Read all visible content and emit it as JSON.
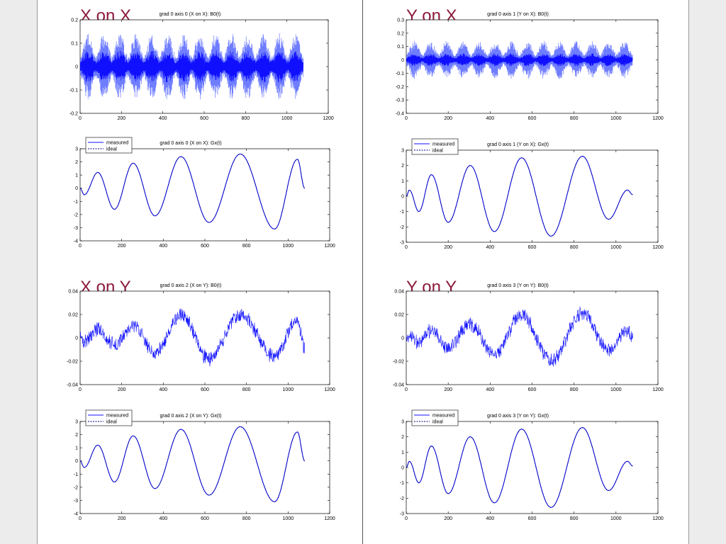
{
  "colors": {
    "measured": "#1010ff",
    "envelope": "#6f7dff",
    "ideal": "#000080",
    "label": "#8b1a3a"
  },
  "section_labels": [
    {
      "text": "X on X",
      "slot": "top-left"
    },
    {
      "text": "Y on X",
      "slot": "top-right"
    },
    {
      "text": "X on Y",
      "slot": "bottom-left"
    },
    {
      "text": "Y on Y",
      "slot": "bottom-right"
    }
  ],
  "chart_data": [
    {
      "id": "xx-b0",
      "type": "line",
      "title": "grad 0 axis 0 (X on X): B0(t)",
      "xlim": [
        0,
        1200
      ],
      "ylim": [
        -0.2,
        0.2
      ],
      "xticks": [
        0,
        200,
        400,
        600,
        800,
        1000,
        1200
      ],
      "yticks": [
        -0.2,
        -0.1,
        0,
        0.1,
        0.2
      ],
      "series": [
        {
          "kind": "noise",
          "x_end": 1080,
          "amplitude": 0.07,
          "envelope_amplitude": 0.13,
          "bursts": 14
        }
      ]
    },
    {
      "id": "xx-gx",
      "type": "line",
      "title": "grad 0 axis 0 (X on X): Gx(t)",
      "xlim": [
        0,
        1200
      ],
      "ylim": [
        -4,
        3
      ],
      "xticks": [
        0,
        200,
        400,
        600,
        800,
        1000,
        1200
      ],
      "yticks": [
        -4,
        -3,
        -2,
        -1,
        0,
        1,
        2,
        3
      ],
      "legend": [
        "measured",
        "ideal"
      ],
      "series": [
        {
          "name": "measured",
          "x": [
            0,
            20,
            85,
            165,
            255,
            360,
            485,
            620,
            770,
            935,
            1045,
            1080
          ],
          "y": [
            0,
            -0.5,
            1.2,
            -1.6,
            1.9,
            -2.1,
            2.4,
            -2.6,
            2.6,
            -3.1,
            2.2,
            0
          ]
        },
        {
          "name": "ideal",
          "x": [
            0,
            20,
            85,
            165,
            255,
            360,
            485,
            620,
            770,
            935,
            1045,
            1080
          ],
          "y": [
            0,
            -0.5,
            1.2,
            -1.6,
            1.9,
            -2.1,
            2.4,
            -2.6,
            2.6,
            -3.1,
            2.2,
            0
          ]
        }
      ]
    },
    {
      "id": "yx-b0",
      "type": "line",
      "title": "grad 0 axis 1 (Y on X): B0(t)",
      "xlim": [
        0,
        1200
      ],
      "ylim": [
        -0.4,
        0.3
      ],
      "xticks": [
        0,
        200,
        400,
        600,
        800,
        1000,
        1200
      ],
      "yticks": [
        -0.4,
        -0.3,
        -0.2,
        -0.1,
        0,
        0.1,
        0.2,
        0.3
      ],
      "series": [
        {
          "kind": "noise",
          "x_end": 1080,
          "amplitude": 0.05,
          "envelope_amplitude": 0.13,
          "bursts": 14
        }
      ]
    },
    {
      "id": "yx-gx",
      "type": "line",
      "title": "grad 0 axis 1 (Y on X): Gx(t)",
      "xlim": [
        0,
        1200
      ],
      "ylim": [
        -3,
        3
      ],
      "xticks": [
        0,
        200,
        400,
        600,
        800,
        1000,
        1200
      ],
      "yticks": [
        -3,
        -2,
        -1,
        0,
        1,
        2,
        3
      ],
      "legend": [
        "measured",
        "ideal"
      ],
      "series": [
        {
          "name": "measured",
          "x": [
            0,
            15,
            60,
            120,
            200,
            305,
            420,
            550,
            690,
            840,
            965,
            1055,
            1080
          ],
          "y": [
            0,
            0.4,
            -1.0,
            1.4,
            -1.7,
            2.0,
            -2.3,
            2.5,
            -2.6,
            2.6,
            -1.5,
            0.4,
            0.1
          ]
        },
        {
          "name": "ideal",
          "x": [
            0,
            15,
            60,
            120,
            200,
            305,
            420,
            550,
            690,
            840,
            965,
            1055,
            1080
          ],
          "y": [
            0,
            0.4,
            -1.0,
            1.4,
            -1.7,
            2.0,
            -2.3,
            2.5,
            -2.6,
            2.6,
            -1.5,
            0.4,
            0.1
          ]
        }
      ]
    },
    {
      "id": "xy-b0",
      "type": "line",
      "title": "grad 0 axis 2 (X on Y): B0(t)",
      "xlim": [
        0,
        1200
      ],
      "ylim": [
        -0.04,
        0.04
      ],
      "xticks": [
        0,
        200,
        400,
        600,
        800,
        1000,
        1200
      ],
      "yticks": [
        -0.04,
        -0.02,
        0,
        0.02,
        0.04
      ],
      "series": [
        {
          "kind": "wave-noise",
          "x": [
            0,
            20,
            85,
            165,
            255,
            360,
            485,
            620,
            770,
            935,
            1045,
            1080
          ],
          "y": [
            0,
            -0.003,
            0.007,
            -0.006,
            0.011,
            -0.013,
            0.02,
            -0.018,
            0.02,
            -0.016,
            0.016,
            -0.008
          ],
          "noise": 0.0065
        }
      ]
    },
    {
      "id": "xy-gx",
      "type": "line",
      "title": "grad 0 axis 2 (X on Y): Gx(t)",
      "xlim": [
        0,
        1200
      ],
      "ylim": [
        -4,
        3
      ],
      "xticks": [
        0,
        200,
        400,
        600,
        800,
        1000,
        1200
      ],
      "yticks": [
        -4,
        -3,
        -2,
        -1,
        0,
        1,
        2,
        3
      ],
      "legend": [
        "measured",
        "ideal"
      ],
      "series": [
        {
          "name": "measured",
          "x": [
            0,
            20,
            85,
            165,
            255,
            360,
            485,
            620,
            770,
            935,
            1045,
            1080
          ],
          "y": [
            0,
            -0.5,
            1.2,
            -1.6,
            1.9,
            -2.1,
            2.4,
            -2.6,
            2.6,
            -3.1,
            2.2,
            0
          ]
        },
        {
          "name": "ideal",
          "x": [
            0,
            20,
            85,
            165,
            255,
            360,
            485,
            620,
            770,
            935,
            1045,
            1080
          ],
          "y": [
            0,
            -0.5,
            1.2,
            -1.6,
            1.9,
            -2.1,
            2.4,
            -2.6,
            2.6,
            -3.1,
            2.2,
            0
          ]
        }
      ]
    },
    {
      "id": "yy-b0",
      "type": "line",
      "title": "grad 0 axis 3 (Y on Y): B0(t)",
      "xlim": [
        0,
        1200
      ],
      "ylim": [
        -0.04,
        0.04
      ],
      "xticks": [
        0,
        200,
        400,
        600,
        800,
        1000,
        1200
      ],
      "yticks": [
        -0.04,
        -0.02,
        0,
        0.02,
        0.04
      ],
      "series": [
        {
          "kind": "wave-noise",
          "x": [
            0,
            15,
            60,
            120,
            200,
            305,
            420,
            550,
            690,
            840,
            965,
            1055,
            1080
          ],
          "y": [
            0,
            0.003,
            -0.004,
            0.006,
            -0.008,
            0.012,
            -0.014,
            0.02,
            -0.02,
            0.021,
            -0.01,
            0.006,
            0.002
          ],
          "noise": 0.0065
        }
      ]
    },
    {
      "id": "yy-gx",
      "type": "line",
      "title": "grad 0 axis 3 (Y on Y): Gx(t)",
      "xlim": [
        0,
        1200
      ],
      "ylim": [
        -3,
        3
      ],
      "xticks": [
        0,
        200,
        400,
        600,
        800,
        1000,
        1200
      ],
      "yticks": [
        -3,
        -2,
        -1,
        0,
        1,
        2,
        3
      ],
      "legend": [
        "measured",
        "ideal"
      ],
      "series": [
        {
          "name": "measured",
          "x": [
            0,
            15,
            60,
            120,
            200,
            305,
            420,
            550,
            690,
            840,
            965,
            1055,
            1080
          ],
          "y": [
            0,
            0.4,
            -1.0,
            1.4,
            -1.7,
            2.0,
            -2.3,
            2.5,
            -2.6,
            2.6,
            -1.5,
            0.4,
            0.1
          ]
        },
        {
          "name": "ideal",
          "x": [
            0,
            15,
            60,
            120,
            200,
            305,
            420,
            550,
            690,
            840,
            965,
            1055,
            1080
          ],
          "y": [
            0,
            0.4,
            -1.0,
            1.4,
            -1.7,
            2.0,
            -2.3,
            2.5,
            -2.6,
            2.6,
            -1.5,
            0.4,
            0.1
          ]
        }
      ]
    }
  ]
}
